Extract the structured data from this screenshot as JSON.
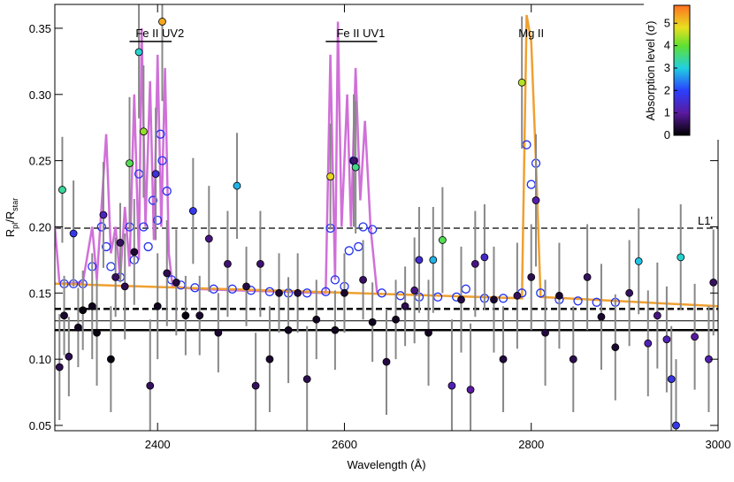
{
  "chart_data": {
    "type": "scatter",
    "x_label": "Wavelength (Å)",
    "y_label": [
      "R",
      "pl",
      "/R",
      "star"
    ],
    "xlim": [
      2290,
      3000
    ],
    "ylim": [
      0.046,
      0.368
    ],
    "xticks": [
      2400,
      2600,
      2800,
      3000
    ],
    "yticks": [
      0.05,
      {
        "value": 0.1,
        "label": "0.10"
      },
      0.15,
      {
        "value": 0.2,
        "label": "0.20"
      },
      0.25,
      {
        "value": 0.3,
        "label": "0.30"
      },
      0.35
    ],
    "colorbar": {
      "label": "Absorption level (σ)",
      "lim": [
        0,
        5.8
      ],
      "ticks": [
        0,
        1,
        2,
        3,
        4,
        5
      ],
      "stops": [
        [
          0,
          "#000000"
        ],
        [
          1,
          "#5a1aa0"
        ],
        [
          2,
          "#2a40ff"
        ],
        [
          3,
          "#20d0e0"
        ],
        [
          4,
          "#60e030"
        ],
        [
          4.8,
          "#e8e020"
        ],
        [
          5.8,
          "#ff7020"
        ]
      ]
    },
    "hlines": [
      {
        "value": 0.199,
        "dash": true,
        "width": 1.2,
        "label": "L1'"
      },
      {
        "value": 0.138,
        "dash": true,
        "width": 2.5
      },
      {
        "value": 0.129,
        "dash": false,
        "width": 1
      },
      {
        "value": 0.122,
        "dash": false,
        "width": 2.5
      }
    ],
    "annotations": [
      {
        "text": "Fe II UV2",
        "x": 2393,
        "x0": 2370,
        "x1": 2415,
        "y": 0.34
      },
      {
        "text": "Fe II UV1",
        "x": 2608,
        "x0": 2580,
        "x1": 2635,
        "y": 0.34
      },
      {
        "text": "Mg II",
        "x": 2800,
        "y": 0.34
      }
    ],
    "series": [
      {
        "name": "model spectrum",
        "kind": "line",
        "color": "#d070d8",
        "x": [
          2290,
          2295,
          2320,
          2330,
          2335,
          2345,
          2350,
          2355,
          2360,
          2365,
          2370,
          2375,
          2380,
          2383,
          2387,
          2392,
          2396,
          2400,
          2404,
          2408,
          2412,
          2416,
          2440,
          2580,
          2585,
          2590,
          2593,
          2597,
          2603,
          2607,
          2612,
          2617,
          2622,
          2628,
          2635,
          2640
        ],
        "values": [
          0.2,
          0.157,
          0.158,
          0.2,
          0.16,
          0.27,
          0.18,
          0.2,
          0.16,
          0.215,
          0.17,
          0.3,
          0.175,
          0.35,
          0.2,
          0.31,
          0.19,
          0.33,
          0.2,
          0.32,
          0.18,
          0.155,
          0.153,
          0.15,
          0.33,
          0.16,
          0.355,
          0.2,
          0.3,
          0.2,
          0.32,
          0.22,
          0.28,
          0.2,
          0.15,
          0.149
        ]
      },
      {
        "name": "continuum model",
        "kind": "line",
        "color": "#f0a030",
        "x": [
          2290,
          2790,
          2795,
          2800,
          2805,
          2810,
          3000
        ],
        "values": [
          0.157,
          0.146,
          0.36,
          0.34,
          0.25,
          0.147,
          0.14
        ]
      },
      {
        "name": "binned model",
        "kind": "open",
        "color": "#2030f0",
        "x": [
          2300,
          2310,
          2320,
          2330,
          2340,
          2345,
          2350,
          2360,
          2370,
          2375,
          2380,
          2385,
          2390,
          2395,
          2400,
          2403,
          2405,
          2410,
          2415,
          2425,
          2440,
          2460,
          2480,
          2500,
          2520,
          2540,
          2560,
          2580,
          2585,
          2590,
          2600,
          2605,
          2610,
          2615,
          2620,
          2630,
          2640,
          2660,
          2680,
          2700,
          2720,
          2730,
          2750,
          2770,
          2790,
          2795,
          2800,
          2805,
          2810,
          2830,
          2850,
          2870,
          2890
        ],
        "values": [
          0.157,
          0.157,
          0.157,
          0.17,
          0.2,
          0.185,
          0.17,
          0.162,
          0.2,
          0.175,
          0.24,
          0.2,
          0.185,
          0.22,
          0.205,
          0.27,
          0.25,
          0.227,
          0.16,
          0.156,
          0.154,
          0.153,
          0.153,
          0.152,
          0.151,
          0.15,
          0.15,
          0.151,
          0.199,
          0.16,
          0.155,
          0.182,
          0.25,
          0.185,
          0.2,
          0.198,
          0.15,
          0.148,
          0.147,
          0.147,
          0.147,
          0.153,
          0.146,
          0.146,
          0.15,
          0.262,
          0.232,
          0.248,
          0.15,
          0.145,
          0.144,
          0.143,
          0.143
        ]
      },
      {
        "name": "measurements",
        "kind": "points",
        "x": [
          2295,
          2298,
          2300,
          2305,
          2310,
          2315,
          2320,
          2330,
          2335,
          2342,
          2350,
          2355,
          2360,
          2365,
          2370,
          2375,
          2380,
          2385,
          2392,
          2398,
          2400,
          2405,
          2410,
          2420,
          2430,
          2438,
          2445,
          2455,
          2465,
          2475,
          2485,
          2495,
          2505,
          2510,
          2520,
          2530,
          2540,
          2550,
          2560,
          2570,
          2585,
          2590,
          2600,
          2610,
          2612,
          2620,
          2630,
          2645,
          2655,
          2665,
          2675,
          2680,
          2690,
          2695,
          2705,
          2715,
          2725,
          2735,
          2740,
          2750,
          2760,
          2770,
          2785,
          2790,
          2800,
          2805,
          2815,
          2830,
          2845,
          2860,
          2875,
          2890,
          2905,
          2915,
          2925,
          2935,
          2945,
          2950,
          2955,
          2960,
          2975,
          2990,
          2995
        ],
        "values": [
          0.094,
          0.228,
          0.133,
          0.102,
          0.195,
          0.124,
          0.137,
          0.14,
          0.12,
          0.209,
          0.1,
          0.162,
          0.188,
          0.155,
          0.248,
          0.181,
          0.332,
          0.272,
          0.08,
          0.24,
          0.14,
          0.355,
          0.165,
          0.158,
          0.133,
          0.212,
          0.133,
          0.191,
          0.12,
          0.172,
          0.231,
          0.155,
          0.08,
          0.172,
          0.1,
          0.15,
          0.122,
          0.15,
          0.085,
          0.13,
          0.238,
          0.122,
          0.15,
          0.25,
          0.245,
          0.16,
          0.128,
          0.098,
          0.13,
          0.14,
          0.152,
          0.175,
          0.12,
          0.175,
          0.19,
          0.08,
          0.145,
          0.077,
          0.172,
          0.177,
          0.145,
          0.1,
          0.148,
          0.309,
          0.162,
          0.22,
          0.12,
          0.148,
          0.1,
          0.162,
          0.132,
          0.109,
          0.15,
          0.174,
          0.112,
          0.133,
          0.115,
          0.085,
          0.05,
          0.177,
          0.117,
          0.1,
          0.158
        ],
        "errors": [
          0.04,
          0.04,
          0.03,
          0.03,
          0.04,
          0.03,
          0.03,
          0.04,
          0.04,
          0.04,
          0.04,
          0.03,
          0.03,
          0.04,
          0.05,
          0.04,
          0.05,
          0.05,
          0.05,
          0.05,
          0.04,
          0.06,
          0.04,
          0.04,
          0.03,
          0.04,
          0.03,
          0.04,
          0.03,
          0.04,
          0.04,
          0.03,
          0.04,
          0.04,
          0.04,
          0.03,
          0.04,
          0.03,
          0.04,
          0.03,
          0.04,
          0.03,
          0.03,
          0.05,
          0.05,
          0.03,
          0.03,
          0.04,
          0.03,
          0.03,
          0.04,
          0.04,
          0.04,
          0.04,
          0.04,
          0.05,
          0.04,
          0.05,
          0.04,
          0.04,
          0.04,
          0.04,
          0.04,
          0.05,
          0.04,
          0.05,
          0.04,
          0.04,
          0.04,
          0.04,
          0.04,
          0.04,
          0.04,
          0.04,
          0.04,
          0.04,
          0.04,
          0.04,
          0.05,
          0.04,
          0.04,
          0.04,
          0.04
        ],
        "sigma": [
          0.5,
          3.4,
          0.3,
          0.5,
          1.8,
          0.2,
          0.1,
          0.2,
          0.1,
          1.3,
          0.1,
          0.6,
          0.6,
          0.5,
          3.8,
          0.3,
          3.1,
          4.3,
          0.6,
          1.6,
          0.2,
          5.3,
          0.5,
          0.4,
          0.1,
          1.8,
          0.3,
          0.8,
          0.3,
          0.7,
          2.8,
          0.4,
          0.6,
          0.7,
          0.3,
          0.3,
          0.2,
          0.4,
          0.5,
          0.2,
          4.9,
          0.2,
          0.3,
          0.7,
          3.5,
          0.6,
          0.2,
          0.4,
          0.2,
          0.5,
          0.8,
          1.5,
          0.2,
          2.8,
          3.8,
          1.2,
          0.4,
          1.0,
          0.8,
          1.4,
          0.3,
          0.4,
          0.6,
          4.5,
          0.5,
          1.1,
          0.4,
          0.3,
          0.5,
          0.6,
          0.3,
          0.3,
          0.6,
          2.9,
          1.2,
          0.8,
          1.2,
          1.7,
          1.8,
          3.1,
          1.0,
          1.2,
          0.6
        ]
      }
    ]
  }
}
